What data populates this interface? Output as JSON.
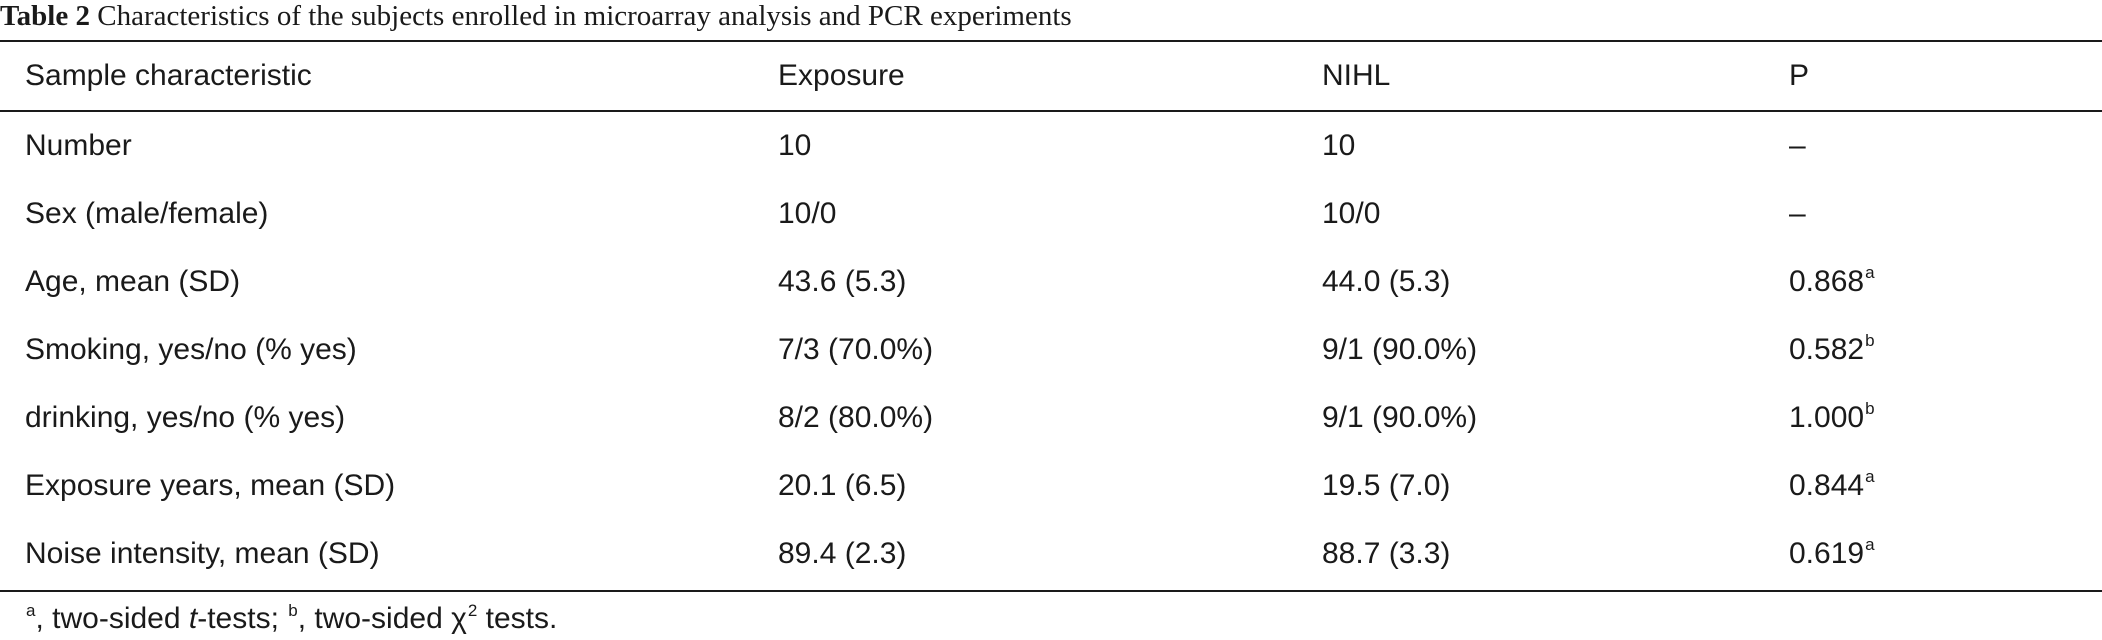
{
  "caption": {
    "label": "Table 2",
    "text": "Characteristics of the subjects enrolled in microarray analysis and PCR experiments"
  },
  "table": {
    "headers": [
      "Sample characteristic",
      "Exposure",
      "NIHL",
      "P"
    ],
    "rows": [
      {
        "characteristic": "Number",
        "exposure": "10",
        "nihl": "10",
        "p": "–",
        "sup": ""
      },
      {
        "characteristic": "Sex (male/female)",
        "exposure": "10/0",
        "nihl": "10/0",
        "p": "–",
        "sup": ""
      },
      {
        "characteristic": "Age, mean (SD)",
        "exposure": "43.6 (5.3)",
        "nihl": "44.0 (5.3)",
        "p": "0.868",
        "sup": "a"
      },
      {
        "characteristic": "Smoking, yes/no (% yes)",
        "exposure": "7/3 (70.0%)",
        "nihl": "9/1 (90.0%)",
        "p": "0.582",
        "sup": "b"
      },
      {
        "characteristic": "drinking, yes/no (% yes)",
        "exposure": "8/2 (80.0%)",
        "nihl": "9/1 (90.0%)",
        "p": "1.000",
        "sup": "b"
      },
      {
        "characteristic": "Exposure years, mean (SD)",
        "exposure": "20.1 (6.5)",
        "nihl": "19.5 (7.0)",
        "p": "0.844",
        "sup": "a"
      },
      {
        "characteristic": "Noise intensity, mean (SD)",
        "exposure": "89.4 (2.3)",
        "nihl": "88.7 (3.3)",
        "p": "0.619",
        "sup": "a"
      }
    ]
  },
  "footnote": {
    "mark_a": "a",
    "text_a_1": ", two-sided ",
    "text_a_italic": "t",
    "text_a_2": "-tests; ",
    "mark_b": "b",
    "text_b_1": ", two-sided χ",
    "text_b_sup": "2",
    "text_b_2": " tests."
  }
}
